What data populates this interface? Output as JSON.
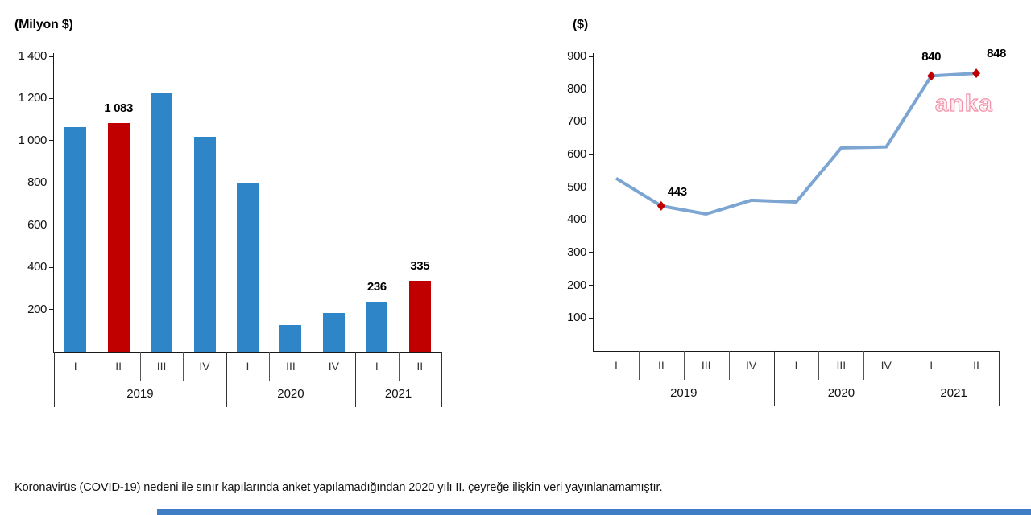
{
  "page": {
    "footnote": "Koronavirüs (COVID-19) nedeni ile sınır kapılarında anket yapılamadığından 2020 yılı II. çeyreğe ilişkin veri yayınlanamamıştır.",
    "watermark": "anka"
  },
  "colors": {
    "bar_blue": "#2E86C8",
    "bar_red": "#C00000",
    "line_blue": "#7CA5D2",
    "marker_red": "#C00000",
    "axis": "#1A1A1A",
    "watermark_pink": "#F090A8",
    "bottom_bar_blue": "#3F7DC4"
  },
  "chart_data": [
    {
      "type": "bar",
      "title": "(Milyon $)",
      "categories": [
        "2019 I",
        "2019 II",
        "2019 III",
        "2019 IV",
        "2020 I",
        "2020 III",
        "2020 IV",
        "2021 I",
        "2021 II"
      ],
      "values": [
        1065,
        1083,
        1229,
        1020,
        797,
        126,
        183,
        236,
        335
      ],
      "bar_colors": [
        "blue",
        "red",
        "blue",
        "blue",
        "blue",
        "blue",
        "blue",
        "blue",
        "red"
      ],
      "data_labels": {
        "1": "1 083",
        "7": "236",
        "8": "335"
      },
      "ylim": [
        0,
        1400
      ],
      "grid": false,
      "legend": false,
      "y_ticks": [
        {
          "v": 200,
          "label": "200"
        },
        {
          "v": 400,
          "label": "400"
        },
        {
          "v": 600,
          "label": "600"
        },
        {
          "v": 800,
          "label": "800"
        },
        {
          "v": 1000,
          "label": "1 000"
        },
        {
          "v": 1200,
          "label": "1 200"
        },
        {
          "v": 1400,
          "label": "1 400"
        }
      ],
      "x_groups": [
        {
          "year": "2019",
          "quarters": [
            "I",
            "II",
            "III",
            "IV"
          ]
        },
        {
          "year": "2020",
          "quarters": [
            "I",
            "III",
            "IV"
          ]
        },
        {
          "year": "2021",
          "quarters": [
            "I",
            "II"
          ]
        }
      ]
    },
    {
      "type": "line",
      "title": "($)",
      "categories": [
        "2019 I",
        "2019 II",
        "2019 III",
        "2019 IV",
        "2020 I",
        "2020 III",
        "2020 IV",
        "2021 I",
        "2021 II"
      ],
      "values": [
        527,
        443,
        418,
        460,
        455,
        620,
        623,
        840,
        848
      ],
      "marker_indices": [
        1,
        7,
        8
      ],
      "data_labels": {
        "1": "443",
        "7": "840",
        "8": "848"
      },
      "ylim": [
        0,
        900
      ],
      "grid": false,
      "legend": false,
      "y_ticks": [
        {
          "v": 100,
          "label": "100"
        },
        {
          "v": 200,
          "label": "200"
        },
        {
          "v": 300,
          "label": "300"
        },
        {
          "v": 400,
          "label": "400"
        },
        {
          "v": 500,
          "label": "500"
        },
        {
          "v": 600,
          "label": "600"
        },
        {
          "v": 700,
          "label": "700"
        },
        {
          "v": 800,
          "label": "800"
        },
        {
          "v": 900,
          "label": "900"
        }
      ],
      "x_groups": [
        {
          "year": "2019",
          "quarters": [
            "I",
            "II",
            "III",
            "IV"
          ]
        },
        {
          "year": "2020",
          "quarters": [
            "I",
            "III",
            "IV"
          ]
        },
        {
          "year": "2021",
          "quarters": [
            "I",
            "II"
          ]
        }
      ]
    }
  ]
}
